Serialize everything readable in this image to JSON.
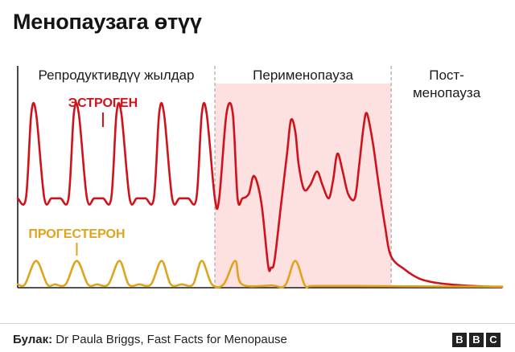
{
  "title": "Менопаузага өтүү",
  "footer": {
    "source_label": "Булак:",
    "source_text": "Dr Paula Briggs, Fast Facts for Menopause",
    "logo_letters": [
      "B",
      "B",
      "C"
    ]
  },
  "colors": {
    "estrogen": "#d0121b",
    "progesterone": "#e0a31c",
    "perimenopause_band": "#fde0e0",
    "divider": "#a8a8a8",
    "axis": "#1a1a1a"
  },
  "chart_data": {
    "type": "line",
    "title": "Менопаузага өтүү",
    "xlabel": "",
    "ylabel": "",
    "xlim": [
      0,
      100
    ],
    "ylim": [
      0,
      100
    ],
    "grid": false,
    "legend": "inline labels",
    "phases": [
      {
        "label": "Репродуктивдүү жылдар",
        "start": 0,
        "end": 40.7,
        "highlight": false
      },
      {
        "label": "Перименопауза",
        "start": 40.7,
        "end": 77.1,
        "highlight": true
      },
      {
        "label": "Пост-\nменопауза",
        "start": 77.1,
        "end": 100,
        "highlight": false
      }
    ],
    "series": [
      {
        "name": "ЭСТРОГЕН",
        "color": "#d0121b",
        "x": [
          0,
          1.7,
          2.8,
          3.8,
          5.5,
          7.0,
          8.8,
          10.5,
          11.6,
          12.6,
          14.3,
          15.8,
          17.6,
          19.3,
          20.4,
          21.4,
          23.1,
          24.6,
          26.4,
          28.1,
          29.2,
          30.2,
          31.9,
          33.4,
          35.2,
          36.9,
          38.0,
          39.0,
          40.7,
          41.6,
          43.1,
          44.4,
          45.4,
          46.4,
          47.7,
          48.8,
          50.3,
          51.7,
          52.3,
          53.0,
          54.3,
          55.6,
          56.4,
          57.3,
          58.0,
          59.1,
          60.4,
          61.8,
          62.9,
          64.2,
          65.1,
          66.0,
          67.1,
          68.2,
          69.6,
          70.5,
          71.4,
          72.1,
          73.3,
          74.4,
          75.8,
          77.1,
          80.0,
          83.0,
          87.0,
          92.0,
          97.0,
          100.0
        ],
        "y": [
          40,
          40,
          78,
          78,
          40,
          40,
          40,
          40,
          78,
          78,
          40,
          40,
          40,
          40,
          78,
          78,
          40,
          40,
          40,
          40,
          78,
          78,
          40,
          40,
          40,
          40,
          78,
          78,
          40,
          40,
          78,
          78,
          40,
          40,
          42,
          50,
          38,
          10,
          9,
          12,
          36,
          60,
          75,
          70,
          55,
          44,
          46,
          52,
          46,
          40,
          48,
          60,
          52,
          42,
          40,
          55,
          72,
          78,
          65,
          48,
          28,
          14,
          8,
          4,
          2,
          1,
          0.5,
          0.3
        ]
      },
      {
        "name": "ПРОГЕСТЕРОН",
        "color": "#e0a31c",
        "x": [
          0,
          1.5,
          3.8,
          6.1,
          7.7,
          9.9,
          12.2,
          14.5,
          16.4,
          18.7,
          21.0,
          22.9,
          25.1,
          27.5,
          29.7,
          31.6,
          33.9,
          36.2,
          38.0,
          40.1,
          42.5,
          44.9,
          46.3,
          52.5,
          55.2,
          57.3,
          59.3,
          61.0,
          70.0,
          80.0,
          100.0
        ],
        "y": [
          1.5,
          1.5,
          12,
          1.5,
          1.5,
          1.5,
          12,
          1.5,
          1.5,
          1.5,
          12,
          1.5,
          1.5,
          1.5,
          12,
          1.5,
          1.5,
          1.5,
          12,
          1.5,
          1.5,
          12,
          1.5,
          1,
          1,
          12,
          1,
          0.8,
          0.8,
          0.6,
          0.5
        ]
      }
    ],
    "annotations": [
      {
        "text": "ЭСТРОГЕН",
        "series": "ЭСТРОГЕН",
        "points_to_x": 17.6
      },
      {
        "text": "ПРОГЕСТЕРОН",
        "series": "ПРОГЕСТЕРОН",
        "points_to_x": 12.2
      }
    ]
  }
}
